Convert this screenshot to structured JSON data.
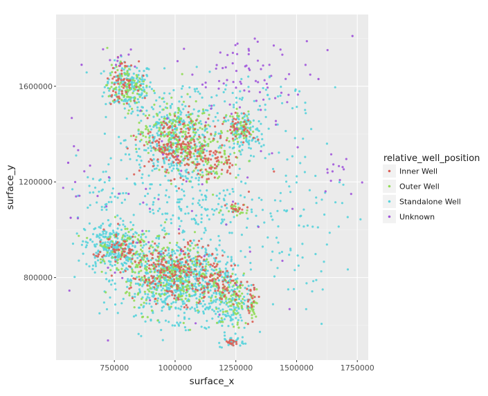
{
  "chart_data": {
    "type": "scatter",
    "title": "",
    "xlabel": "surface_x",
    "ylabel": "surface_y",
    "xlim": [
      510000,
      1795000
    ],
    "ylim": [
      455000,
      1900000
    ],
    "x_ticks": [
      750000,
      1000000,
      1250000,
      1500000,
      1750000
    ],
    "x_tick_labels": [
      "750000",
      "1000000",
      "1250000",
      "1500000",
      "1750000"
    ],
    "y_ticks": [
      800000,
      1200000,
      1600000
    ],
    "y_tick_labels": [
      "800000",
      "1200000",
      "1600000"
    ],
    "grid": true,
    "panel_background": "#ebebeb",
    "legend": {
      "title": "relative_well_position",
      "position": "right",
      "entries": [
        "Inner Well",
        "Outer Well",
        "Standalone Well",
        "Unknown"
      ]
    },
    "series": [
      {
        "name": "Inner Well",
        "color": "#db5f57",
        "clusters": [
          {
            "cx": 780000,
            "cy": 1620000,
            "sx": 30000,
            "sy": 40000,
            "n": 60
          },
          {
            "cx": 1000000,
            "cy": 1350000,
            "sx": 70000,
            "sy": 60000,
            "n": 170
          },
          {
            "cx": 1150000,
            "cy": 1280000,
            "sx": 60000,
            "sy": 40000,
            "n": 70
          },
          {
            "cx": 1270000,
            "cy": 1420000,
            "sx": 30000,
            "sy": 30000,
            "n": 40
          },
          {
            "cx": 760000,
            "cy": 920000,
            "sx": 50000,
            "sy": 40000,
            "n": 60
          },
          {
            "cx": 1000000,
            "cy": 820000,
            "sx": 90000,
            "sy": 60000,
            "n": 220
          },
          {
            "cx": 1200000,
            "cy": 780000,
            "sx": 50000,
            "sy": 40000,
            "n": 60
          },
          {
            "cx": 1250000,
            "cy": 1090000,
            "sx": 20000,
            "sy": 10000,
            "n": 15
          },
          {
            "cx": 1320000,
            "cy": 700000,
            "sx": 15000,
            "sy": 40000,
            "n": 20
          },
          {
            "cx": 1230000,
            "cy": 530000,
            "sx": 15000,
            "sy": 6000,
            "n": 15
          }
        ]
      },
      {
        "name": "Outer Well",
        "color": "#91db57",
        "clusters": [
          {
            "cx": 800000,
            "cy": 1600000,
            "sx": 40000,
            "sy": 45000,
            "n": 90
          },
          {
            "cx": 1000000,
            "cy": 1400000,
            "sx": 80000,
            "sy": 70000,
            "n": 220
          },
          {
            "cx": 1150000,
            "cy": 1300000,
            "sx": 60000,
            "sy": 50000,
            "n": 80
          },
          {
            "cx": 1270000,
            "cy": 1430000,
            "sx": 30000,
            "sy": 35000,
            "n": 50
          },
          {
            "cx": 780000,
            "cy": 930000,
            "sx": 60000,
            "sy": 50000,
            "n": 80
          },
          {
            "cx": 1000000,
            "cy": 800000,
            "sx": 100000,
            "sy": 70000,
            "n": 280
          },
          {
            "cx": 1230000,
            "cy": 700000,
            "sx": 40000,
            "sy": 60000,
            "n": 80
          },
          {
            "cx": 1250000,
            "cy": 1085000,
            "sx": 25000,
            "sy": 12000,
            "n": 20
          },
          {
            "cx": 1320000,
            "cy": 700000,
            "sx": 15000,
            "sy": 40000,
            "n": 20
          }
        ]
      },
      {
        "name": "Standalone Well",
        "color": "#57d3db",
        "clusters": [
          {
            "cx": 810000,
            "cy": 1600000,
            "sx": 50000,
            "sy": 50000,
            "n": 180
          },
          {
            "cx": 1000000,
            "cy": 1380000,
            "sx": 100000,
            "sy": 90000,
            "n": 350
          },
          {
            "cx": 1280000,
            "cy": 1400000,
            "sx": 45000,
            "sy": 50000,
            "n": 110
          },
          {
            "cx": 740000,
            "cy": 930000,
            "sx": 55000,
            "sy": 50000,
            "n": 260
          },
          {
            "cx": 1000000,
            "cy": 790000,
            "sx": 110000,
            "sy": 80000,
            "n": 650
          },
          {
            "cx": 1210000,
            "cy": 700000,
            "sx": 50000,
            "sy": 80000,
            "n": 160
          },
          {
            "cx": 1100000,
            "cy": 1100000,
            "sx": 150000,
            "sy": 100000,
            "n": 180
          },
          {
            "cx": 1300000,
            "cy": 1550000,
            "sx": 150000,
            "sy": 60000,
            "n": 50
          },
          {
            "cx": 1500000,
            "cy": 1050000,
            "sx": 100000,
            "sy": 200000,
            "n": 90
          },
          {
            "cx": 700000,
            "cy": 1150000,
            "sx": 50000,
            "sy": 60000,
            "n": 40
          },
          {
            "cx": 1240000,
            "cy": 530000,
            "sx": 20000,
            "sy": 10000,
            "n": 20
          }
        ]
      },
      {
        "name": "Unknown",
        "color": "#a157db",
        "clusters": [
          {
            "cx": 1330000,
            "cy": 1640000,
            "sx": 120000,
            "sy": 80000,
            "n": 70
          },
          {
            "cx": 750000,
            "cy": 1730000,
            "sx": 40000,
            "sy": 30000,
            "n": 10
          },
          {
            "cx": 1680000,
            "cy": 1250000,
            "sx": 40000,
            "sy": 60000,
            "n": 14
          },
          {
            "cx": 1000000,
            "cy": 1200000,
            "sx": 250000,
            "sy": 400000,
            "n": 60
          },
          {
            "cx": 600000,
            "cy": 1180000,
            "sx": 20000,
            "sy": 80000,
            "n": 5
          }
        ],
        "points": [
          [
            1730000,
            1810000
          ],
          [
            560000,
            1280000
          ],
          [
            570000,
            1050000
          ],
          [
            615000,
            1690000
          ],
          [
            1590000,
            1630000
          ]
        ]
      }
    ]
  }
}
